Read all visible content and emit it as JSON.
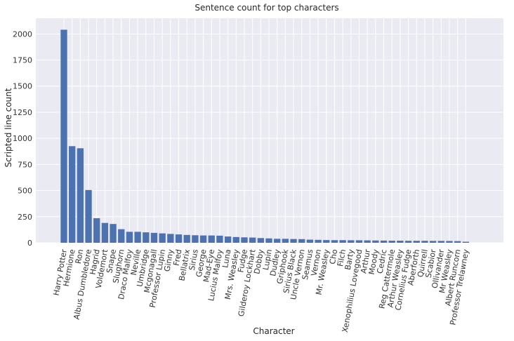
{
  "chart_data": {
    "type": "bar",
    "title": "Sentence count for top characters",
    "xlabel": "Character",
    "ylabel": "Scripted line count",
    "ylim": [
      0,
      2150
    ],
    "yticks": [
      0,
      250,
      500,
      750,
      1000,
      1250,
      1500,
      1750,
      2000
    ],
    "grid": true,
    "bar_color": "#4c72b0",
    "background": "#eaeaf2",
    "categories": [
      "Harry Potter",
      "Hermione",
      "Ron",
      "Albus Dumbledore",
      "Hagrid",
      "Voldemort",
      "Snape",
      "Slughorn",
      "Draco Malfoy",
      "Neville",
      "Umbridge",
      "Mcgonagall",
      "Professor Lupin",
      "Ginny",
      "Fred",
      "Bellatrix",
      "Sirius",
      "George",
      "Mad-Eye",
      "Lucius Malfoy",
      "Luna",
      "Mrs. Weasley",
      "Fudge",
      "Gilderoy Lockhart",
      "Dobby",
      "Lupin",
      "Dudley",
      "Griphook",
      "Sirius Black",
      "Uncle Vernon",
      "Seamus",
      "Vernon",
      "Mr. Weasley",
      "Cho",
      "Filch",
      "Barty",
      "Xenophilius Lovegood",
      "Arthur",
      "Moody",
      "Cedric",
      "Reg Cattermole",
      "Arthur Weasley",
      "Cornelius Fudge",
      "Aberforth",
      "Quirrell",
      "Scabior",
      "Ollivander",
      "Mr Weasley",
      "Albert Runcorn",
      "Professor Trelawney"
    ],
    "values": [
      2040,
      925,
      905,
      505,
      235,
      190,
      180,
      130,
      105,
      105,
      100,
      95,
      90,
      85,
      80,
      75,
      72,
      70,
      70,
      68,
      60,
      55,
      52,
      50,
      45,
      42,
      38,
      38,
      36,
      35,
      30,
      28,
      26,
      25,
      25,
      24,
      24,
      23,
      22,
      21,
      20,
      20,
      19,
      19,
      19,
      18,
      18,
      17,
      16,
      10
    ]
  }
}
